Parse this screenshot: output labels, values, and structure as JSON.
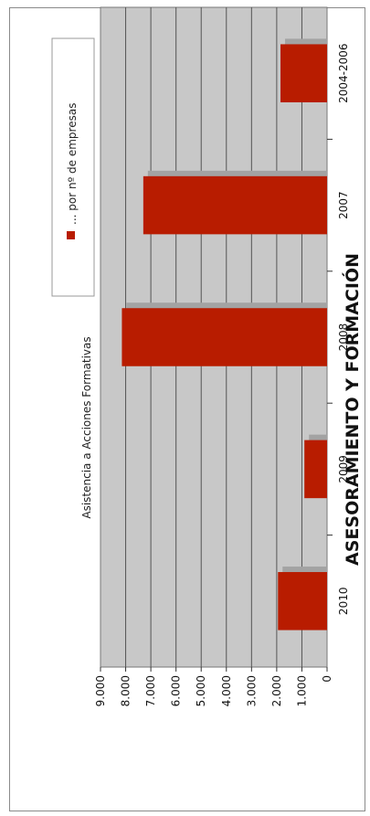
{
  "chart_data": {
    "type": "bar",
    "title": "ASESORAMIENTO Y FORMACIÓN",
    "subtitle": "Asistencia a Acciones Formativas",
    "categories": [
      "2004-2006",
      "2007",
      "2008",
      "2009",
      "2010"
    ],
    "series": [
      {
        "name": "... por nº de empresas",
        "values": [
          1850,
          7300,
          8150,
          900,
          1950
        ],
        "color": "#b81c00"
      }
    ],
    "value_ticks": [
      "0",
      "1.000",
      "2.000",
      "3.000",
      "4.000",
      "5.000",
      "6.000",
      "7.000",
      "8.000",
      "9.000"
    ],
    "ylim": [
      0,
      9000
    ],
    "orientation": "rotated-90",
    "grid": true,
    "legend_position": "top",
    "colors": {
      "plot_background": "#c8c8c8",
      "gridline": "#555555",
      "bar": "#b81c00",
      "bar_shadow": "#a3a3a3"
    }
  }
}
